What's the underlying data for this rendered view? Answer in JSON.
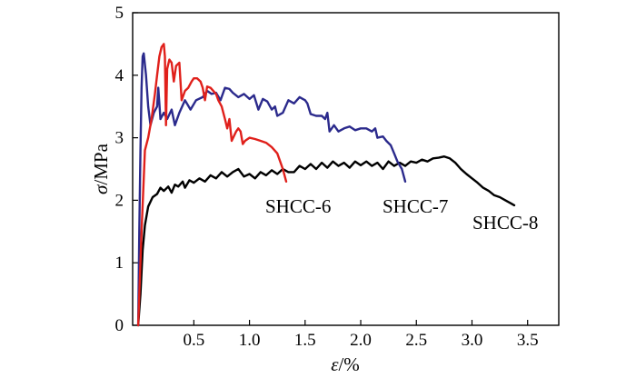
{
  "chart_data": {
    "type": "line",
    "xlabel_symbol": "ε",
    "xlabel_unit": "/%",
    "ylabel_symbol": "σ",
    "ylabel_unit": "/MPa",
    "xlim": [
      -0.05,
      3.78
    ],
    "ylim": [
      0,
      5
    ],
    "xticks": [
      0.5,
      1.0,
      1.5,
      2.0,
      2.5,
      3.0,
      3.5
    ],
    "xtick_labels": [
      "0.5",
      "1.0",
      "1.5",
      "2.0",
      "2.5",
      "3.0",
      "3.5"
    ],
    "yticks": [
      0,
      1,
      2,
      3,
      4,
      5
    ],
    "ytick_labels": [
      "0",
      "1",
      "2",
      "3",
      "4",
      "5"
    ],
    "grid": false,
    "series": [
      {
        "name": "SHCC-8",
        "color": "#000000",
        "points": [
          [
            0.0,
            0.0
          ],
          [
            0.02,
            0.5
          ],
          [
            0.04,
            1.2
          ],
          [
            0.06,
            1.6
          ],
          [
            0.09,
            1.9
          ],
          [
            0.13,
            2.05
          ],
          [
            0.17,
            2.1
          ],
          [
            0.2,
            2.2
          ],
          [
            0.23,
            2.15
          ],
          [
            0.27,
            2.22
          ],
          [
            0.3,
            2.12
          ],
          [
            0.33,
            2.25
          ],
          [
            0.36,
            2.22
          ],
          [
            0.4,
            2.3
          ],
          [
            0.42,
            2.2
          ],
          [
            0.46,
            2.32
          ],
          [
            0.5,
            2.28
          ],
          [
            0.55,
            2.35
          ],
          [
            0.6,
            2.3
          ],
          [
            0.65,
            2.4
          ],
          [
            0.7,
            2.35
          ],
          [
            0.75,
            2.45
          ],
          [
            0.8,
            2.38
          ],
          [
            0.85,
            2.45
          ],
          [
            0.9,
            2.5
          ],
          [
            0.95,
            2.38
          ],
          [
            1.0,
            2.42
          ],
          [
            1.05,
            2.35
          ],
          [
            1.1,
            2.45
          ],
          [
            1.15,
            2.4
          ],
          [
            1.2,
            2.48
          ],
          [
            1.25,
            2.42
          ],
          [
            1.3,
            2.5
          ],
          [
            1.35,
            2.45
          ],
          [
            1.4,
            2.45
          ],
          [
            1.45,
            2.55
          ],
          [
            1.5,
            2.5
          ],
          [
            1.55,
            2.58
          ],
          [
            1.6,
            2.5
          ],
          [
            1.65,
            2.6
          ],
          [
            1.7,
            2.52
          ],
          [
            1.75,
            2.62
          ],
          [
            1.8,
            2.55
          ],
          [
            1.85,
            2.6
          ],
          [
            1.9,
            2.52
          ],
          [
            1.95,
            2.62
          ],
          [
            2.0,
            2.56
          ],
          [
            2.05,
            2.62
          ],
          [
            2.1,
            2.55
          ],
          [
            2.15,
            2.6
          ],
          [
            2.2,
            2.5
          ],
          [
            2.25,
            2.62
          ],
          [
            2.3,
            2.55
          ],
          [
            2.35,
            2.6
          ],
          [
            2.4,
            2.55
          ],
          [
            2.45,
            2.62
          ],
          [
            2.5,
            2.6
          ],
          [
            2.55,
            2.65
          ],
          [
            2.6,
            2.62
          ],
          [
            2.65,
            2.67
          ],
          [
            2.7,
            2.68
          ],
          [
            2.75,
            2.7
          ],
          [
            2.8,
            2.67
          ],
          [
            2.85,
            2.6
          ],
          [
            2.9,
            2.5
          ],
          [
            2.95,
            2.42
          ],
          [
            3.0,
            2.35
          ],
          [
            3.05,
            2.28
          ],
          [
            3.1,
            2.2
          ],
          [
            3.15,
            2.15
          ],
          [
            3.2,
            2.08
          ],
          [
            3.25,
            2.05
          ],
          [
            3.3,
            2.0
          ],
          [
            3.35,
            1.95
          ],
          [
            3.38,
            1.92
          ]
        ]
      },
      {
        "name": "SHCC-7",
        "color": "#2b2a8c",
        "points": [
          [
            0.0,
            0.0
          ],
          [
            0.01,
            1.5
          ],
          [
            0.02,
            2.8
          ],
          [
            0.03,
            3.8
          ],
          [
            0.04,
            4.3
          ],
          [
            0.05,
            4.35
          ],
          [
            0.07,
            4.0
          ],
          [
            0.09,
            3.5
          ],
          [
            0.11,
            3.2
          ],
          [
            0.14,
            3.4
          ],
          [
            0.17,
            3.5
          ],
          [
            0.18,
            3.8
          ],
          [
            0.2,
            3.3
          ],
          [
            0.23,
            3.4
          ],
          [
            0.26,
            3.3
          ],
          [
            0.3,
            3.45
          ],
          [
            0.33,
            3.2
          ],
          [
            0.37,
            3.4
          ],
          [
            0.42,
            3.6
          ],
          [
            0.47,
            3.45
          ],
          [
            0.52,
            3.6
          ],
          [
            0.58,
            3.65
          ],
          [
            0.62,
            3.75
          ],
          [
            0.66,
            3.7
          ],
          [
            0.7,
            3.72
          ],
          [
            0.74,
            3.6
          ],
          [
            0.78,
            3.8
          ],
          [
            0.82,
            3.78
          ],
          [
            0.85,
            3.72
          ],
          [
            0.9,
            3.65
          ],
          [
            0.95,
            3.7
          ],
          [
            1.0,
            3.62
          ],
          [
            1.04,
            3.68
          ],
          [
            1.08,
            3.45
          ],
          [
            1.12,
            3.62
          ],
          [
            1.16,
            3.58
          ],
          [
            1.2,
            3.45
          ],
          [
            1.23,
            3.5
          ],
          [
            1.25,
            3.35
          ],
          [
            1.3,
            3.4
          ],
          [
            1.35,
            3.6
          ],
          [
            1.4,
            3.55
          ],
          [
            1.45,
            3.65
          ],
          [
            1.5,
            3.6
          ],
          [
            1.52,
            3.55
          ],
          [
            1.55,
            3.38
          ],
          [
            1.6,
            3.35
          ],
          [
            1.65,
            3.35
          ],
          [
            1.68,
            3.3
          ],
          [
            1.7,
            3.4
          ],
          [
            1.72,
            3.1
          ],
          [
            1.76,
            3.2
          ],
          [
            1.8,
            3.1
          ],
          [
            1.85,
            3.15
          ],
          [
            1.9,
            3.18
          ],
          [
            1.95,
            3.12
          ],
          [
            2.0,
            3.15
          ],
          [
            2.05,
            3.15
          ],
          [
            2.1,
            3.1
          ],
          [
            2.13,
            3.15
          ],
          [
            2.15,
            3.0
          ],
          [
            2.2,
            3.02
          ],
          [
            2.23,
            2.95
          ],
          [
            2.27,
            2.88
          ],
          [
            2.3,
            2.75
          ],
          [
            2.33,
            2.62
          ],
          [
            2.37,
            2.5
          ],
          [
            2.4,
            2.3
          ]
        ]
      },
      {
        "name": "SHCC-6",
        "color": "#e0201b",
        "points": [
          [
            0.0,
            0.0
          ],
          [
            0.03,
            1.5
          ],
          [
            0.06,
            2.8
          ],
          [
            0.09,
            3.0
          ],
          [
            0.12,
            3.3
          ],
          [
            0.15,
            3.7
          ],
          [
            0.17,
            4.0
          ],
          [
            0.19,
            4.3
          ],
          [
            0.21,
            4.45
          ],
          [
            0.23,
            4.5
          ],
          [
            0.24,
            4.3
          ],
          [
            0.25,
            3.2
          ],
          [
            0.26,
            4.1
          ],
          [
            0.28,
            4.25
          ],
          [
            0.3,
            4.2
          ],
          [
            0.32,
            3.9
          ],
          [
            0.34,
            4.15
          ],
          [
            0.37,
            4.2
          ],
          [
            0.39,
            3.6
          ],
          [
            0.42,
            3.75
          ],
          [
            0.45,
            3.8
          ],
          [
            0.48,
            3.9
          ],
          [
            0.5,
            3.95
          ],
          [
            0.53,
            3.95
          ],
          [
            0.56,
            3.9
          ],
          [
            0.58,
            3.8
          ],
          [
            0.6,
            3.6
          ],
          [
            0.62,
            3.82
          ],
          [
            0.65,
            3.8
          ],
          [
            0.7,
            3.7
          ],
          [
            0.72,
            3.6
          ],
          [
            0.75,
            3.5
          ],
          [
            0.78,
            3.3
          ],
          [
            0.8,
            3.15
          ],
          [
            0.82,
            3.3
          ],
          [
            0.84,
            2.95
          ],
          [
            0.88,
            3.1
          ],
          [
            0.9,
            3.15
          ],
          [
            0.92,
            3.1
          ],
          [
            0.94,
            2.9
          ],
          [
            0.96,
            2.95
          ],
          [
            1.0,
            3.0
          ],
          [
            1.05,
            2.98
          ],
          [
            1.1,
            2.95
          ],
          [
            1.15,
            2.92
          ],
          [
            1.2,
            2.85
          ],
          [
            1.25,
            2.75
          ],
          [
            1.3,
            2.5
          ],
          [
            1.33,
            2.3
          ]
        ]
      }
    ]
  }
}
